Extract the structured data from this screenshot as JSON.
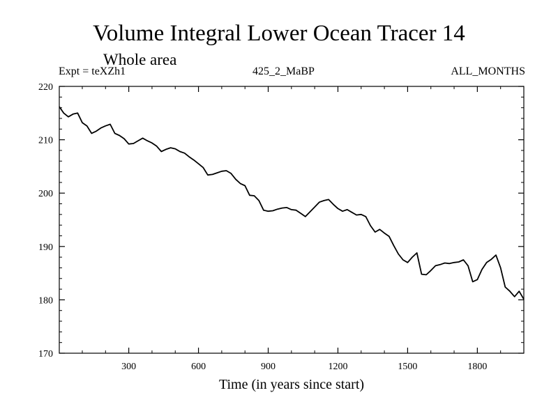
{
  "chart_data": {
    "type": "line",
    "title": "Volume Integral Lower Ocean Tracer 14",
    "subtitle": "Whole area",
    "expt_label": "Expt = teXZh1",
    "center_label": "425_2_MaBP",
    "right_label": "ALL_MONTHS",
    "xlabel": "Time (in years since start)",
    "ylabel": "",
    "xlim": [
      1,
      2000
    ],
    "ylim": [
      170,
      220
    ],
    "x_ticks": [
      300,
      600,
      900,
      1200,
      1500,
      1800
    ],
    "y_ticks": [
      170,
      180,
      190,
      200,
      210,
      220
    ],
    "x_minor_step": 100,
    "y_minor_step": 2,
    "line_color": "#000000",
    "series": [
      {
        "name": "Tracer 14",
        "x": [
          1,
          20,
          40,
          60,
          80,
          100,
          120,
          140,
          160,
          180,
          200,
          220,
          240,
          260,
          280,
          300,
          320,
          340,
          360,
          380,
          400,
          420,
          440,
          460,
          480,
          500,
          520,
          540,
          560,
          580,
          600,
          620,
          640,
          660,
          680,
          700,
          720,
          740,
          760,
          780,
          800,
          820,
          840,
          860,
          880,
          900,
          920,
          940,
          960,
          980,
          1000,
          1020,
          1040,
          1060,
          1080,
          1100,
          1120,
          1140,
          1160,
          1180,
          1200,
          1220,
          1240,
          1260,
          1280,
          1300,
          1320,
          1340,
          1360,
          1380,
          1400,
          1420,
          1440,
          1460,
          1480,
          1500,
          1520,
          1540,
          1560,
          1580,
          1600,
          1620,
          1640,
          1660,
          1680,
          1700,
          1720,
          1740,
          1760,
          1780,
          1800,
          1820,
          1840,
          1860,
          1880,
          1900,
          1920,
          1940,
          1960,
          1980,
          2000
        ],
        "values": [
          216.2,
          215.0,
          214.3,
          214.8,
          215.0,
          213.2,
          212.6,
          211.2,
          211.6,
          212.2,
          212.6,
          212.9,
          211.2,
          210.8,
          210.2,
          209.2,
          209.3,
          209.8,
          210.3,
          209.8,
          209.4,
          208.8,
          207.8,
          208.2,
          208.5,
          208.3,
          207.8,
          207.5,
          206.8,
          206.2,
          205.5,
          204.8,
          203.4,
          203.5,
          203.8,
          204.1,
          204.2,
          203.7,
          202.6,
          201.8,
          201.4,
          199.6,
          199.5,
          198.6,
          196.8,
          196.6,
          196.7,
          197.0,
          197.2,
          197.3,
          196.9,
          196.8,
          196.2,
          195.6,
          196.5,
          197.4,
          198.3,
          198.6,
          198.8,
          197.9,
          197.1,
          196.6,
          196.9,
          196.4,
          195.9,
          196.0,
          195.6,
          193.9,
          192.7,
          193.2,
          192.5,
          191.9,
          190.2,
          188.6,
          187.5,
          187.0,
          188.0,
          188.8,
          184.8,
          184.7,
          185.5,
          186.4,
          186.6,
          186.9,
          186.8,
          187.0,
          187.1,
          187.5,
          186.4,
          183.4,
          183.8,
          185.7,
          187.0,
          187.6,
          188.4,
          186.0,
          182.4,
          181.6,
          180.6,
          181.6,
          180.1
        ]
      }
    ]
  }
}
